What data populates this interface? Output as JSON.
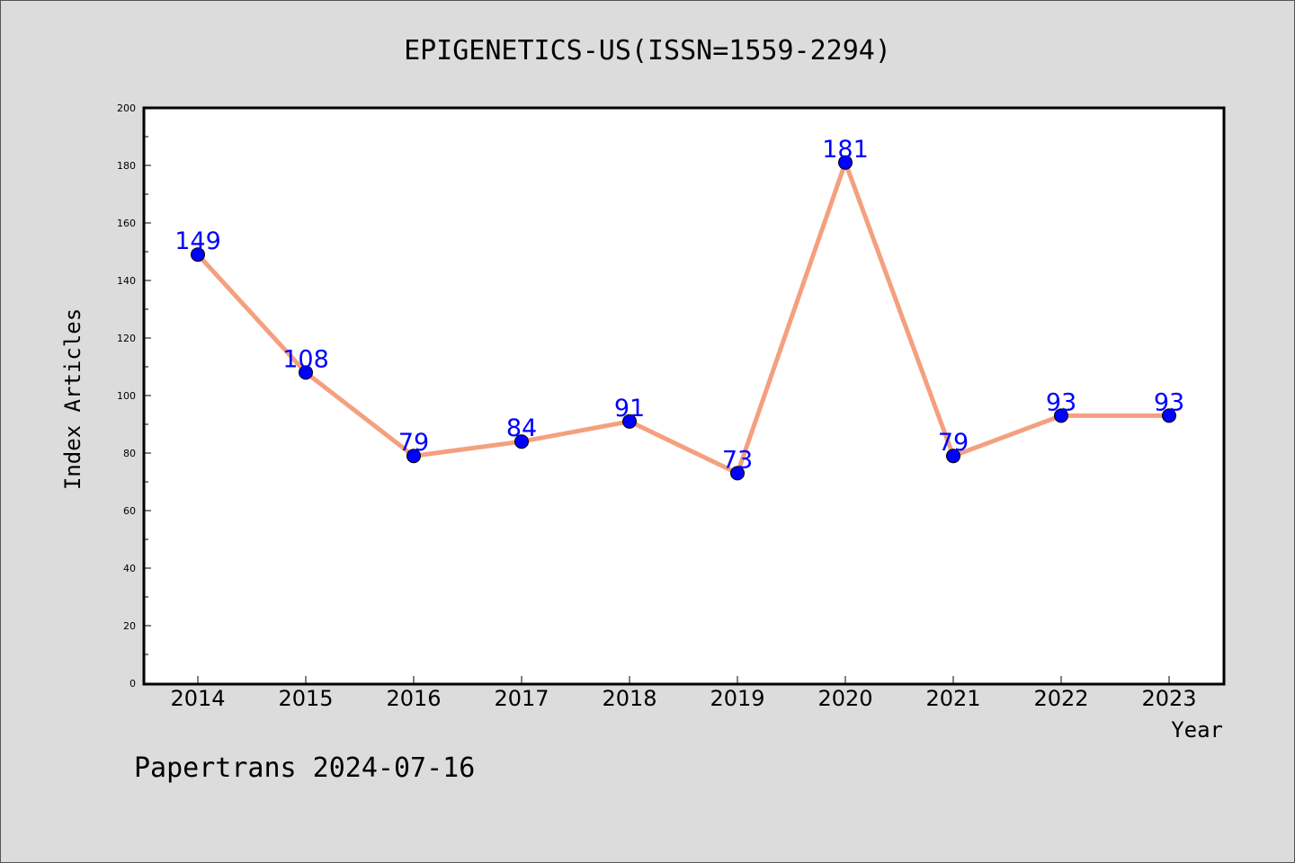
{
  "chart_data": {
    "type": "line",
    "title": "EPIGENETICS-US(ISSN=1559-2294)",
    "xlabel": "Year",
    "ylabel": "Index Articles",
    "categories": [
      "2014",
      "2015",
      "2016",
      "2017",
      "2018",
      "2019",
      "2020",
      "2021",
      "2022",
      "2023"
    ],
    "values": [
      149,
      108,
      79,
      84,
      91,
      73,
      181,
      79,
      93,
      93
    ],
    "data_labels": [
      "149",
      "108",
      "79",
      "84",
      "91",
      "73",
      "181",
      "79",
      "93",
      "93"
    ],
    "ylim": [
      0,
      200
    ],
    "yticks": [
      0,
      20,
      40,
      60,
      80,
      100,
      120,
      140,
      160,
      180,
      200
    ],
    "ytick_labels": [
      "0",
      "20",
      "40",
      "60",
      "80",
      "100",
      "120",
      "140",
      "160",
      "180",
      "200"
    ],
    "grid": false,
    "colors": {
      "line": "#f4a07f",
      "marker": "#0000ff",
      "label": "#0000ff"
    }
  },
  "footer": "Papertrans 2024-07-16"
}
